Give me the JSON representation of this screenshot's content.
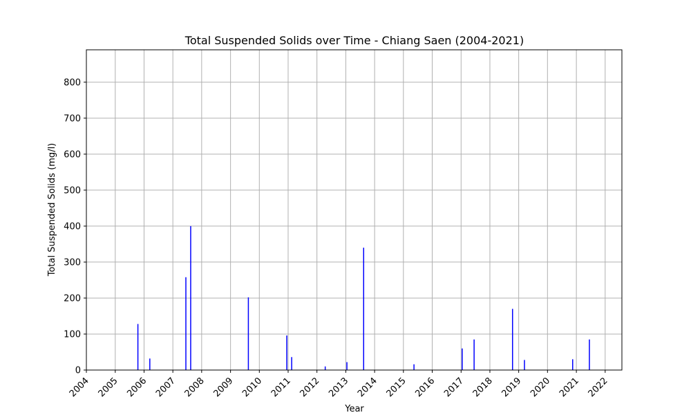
{
  "chart_data": {
    "type": "bar",
    "title": "Total Suspended Solids over Time - Chiang Saen (2004-2021)",
    "xlabel": "Year",
    "ylabel": "Total Suspended Solids (mg/l)",
    "xlim": [
      "2004-01-01",
      "2022-08-01"
    ],
    "ylim": [
      0,
      890
    ],
    "x_ticks": [
      "2004",
      "2005",
      "2006",
      "2007",
      "2008",
      "2009",
      "2010",
      "2011",
      "2012",
      "2013",
      "2014",
      "2015",
      "2016",
      "2017",
      "2018",
      "2019",
      "2020",
      "2021",
      "2022"
    ],
    "y_ticks": [
      0,
      100,
      200,
      300,
      400,
      500,
      600,
      700,
      800
    ],
    "grid": true,
    "bar_color": "#0000ff",
    "series": [
      {
        "points": [
          {
            "x": "2005-10-15",
            "y": 128
          },
          {
            "x": "2006-03-15",
            "y": 32
          },
          {
            "x": "2007-06-15",
            "y": 258
          },
          {
            "x": "2007-08-15",
            "y": 400
          },
          {
            "x": "2009-08-15",
            "y": 202
          },
          {
            "x": "2010-12-15",
            "y": 96
          },
          {
            "x": "2011-02-15",
            "y": 36
          },
          {
            "x": "2012-04-15",
            "y": 10
          },
          {
            "x": "2013-01-15",
            "y": 22
          },
          {
            "x": "2013-08-15",
            "y": 340
          },
          {
            "x": "2015-05-15",
            "y": 16
          },
          {
            "x": "2017-01-15",
            "y": 60
          },
          {
            "x": "2017-06-15",
            "y": 85
          },
          {
            "x": "2018-10-15",
            "y": 170
          },
          {
            "x": "2019-03-15",
            "y": 28
          },
          {
            "x": "2020-11-15",
            "y": 30
          },
          {
            "x": "2021-06-15",
            "y": 85
          }
        ]
      }
    ]
  }
}
